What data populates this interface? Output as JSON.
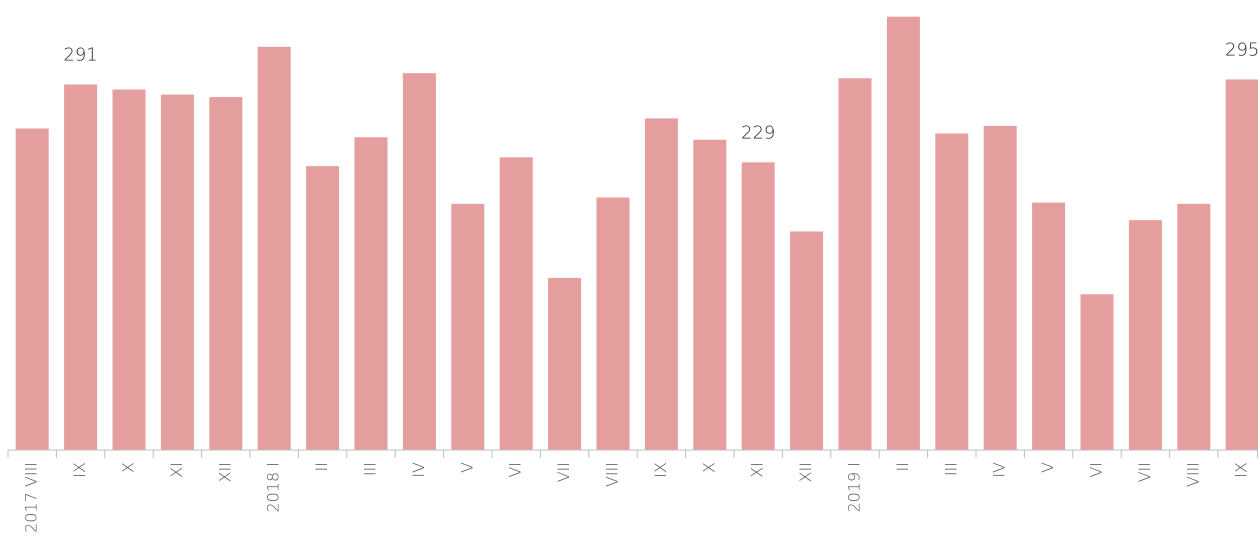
{
  "chart_data": {
    "type": "bar",
    "categories": [
      "2017 VIII",
      "IX",
      "X",
      "XI",
      "XII",
      "2018 I",
      "II",
      "III",
      "IV",
      "V",
      "VI",
      "VII",
      "VIII",
      "IX",
      "X",
      "XI",
      "XII",
      "2019 I",
      "II",
      "III",
      "IV",
      "V",
      "VI",
      "VII",
      "VIII",
      "IX"
    ],
    "values": [
      256,
      291,
      287,
      283,
      281,
      321,
      226,
      249,
      300,
      196,
      233,
      137,
      201,
      264,
      247,
      229,
      174,
      296,
      345,
      252,
      258,
      197,
      124,
      183,
      196,
      295
    ],
    "value_labels": [
      null,
      "291",
      null,
      null,
      null,
      null,
      null,
      null,
      null,
      null,
      null,
      null,
      null,
      null,
      null,
      "229",
      null,
      null,
      null,
      null,
      null,
      null,
      null,
      null,
      null,
      "295"
    ],
    "color": "#e59e9e"
  }
}
